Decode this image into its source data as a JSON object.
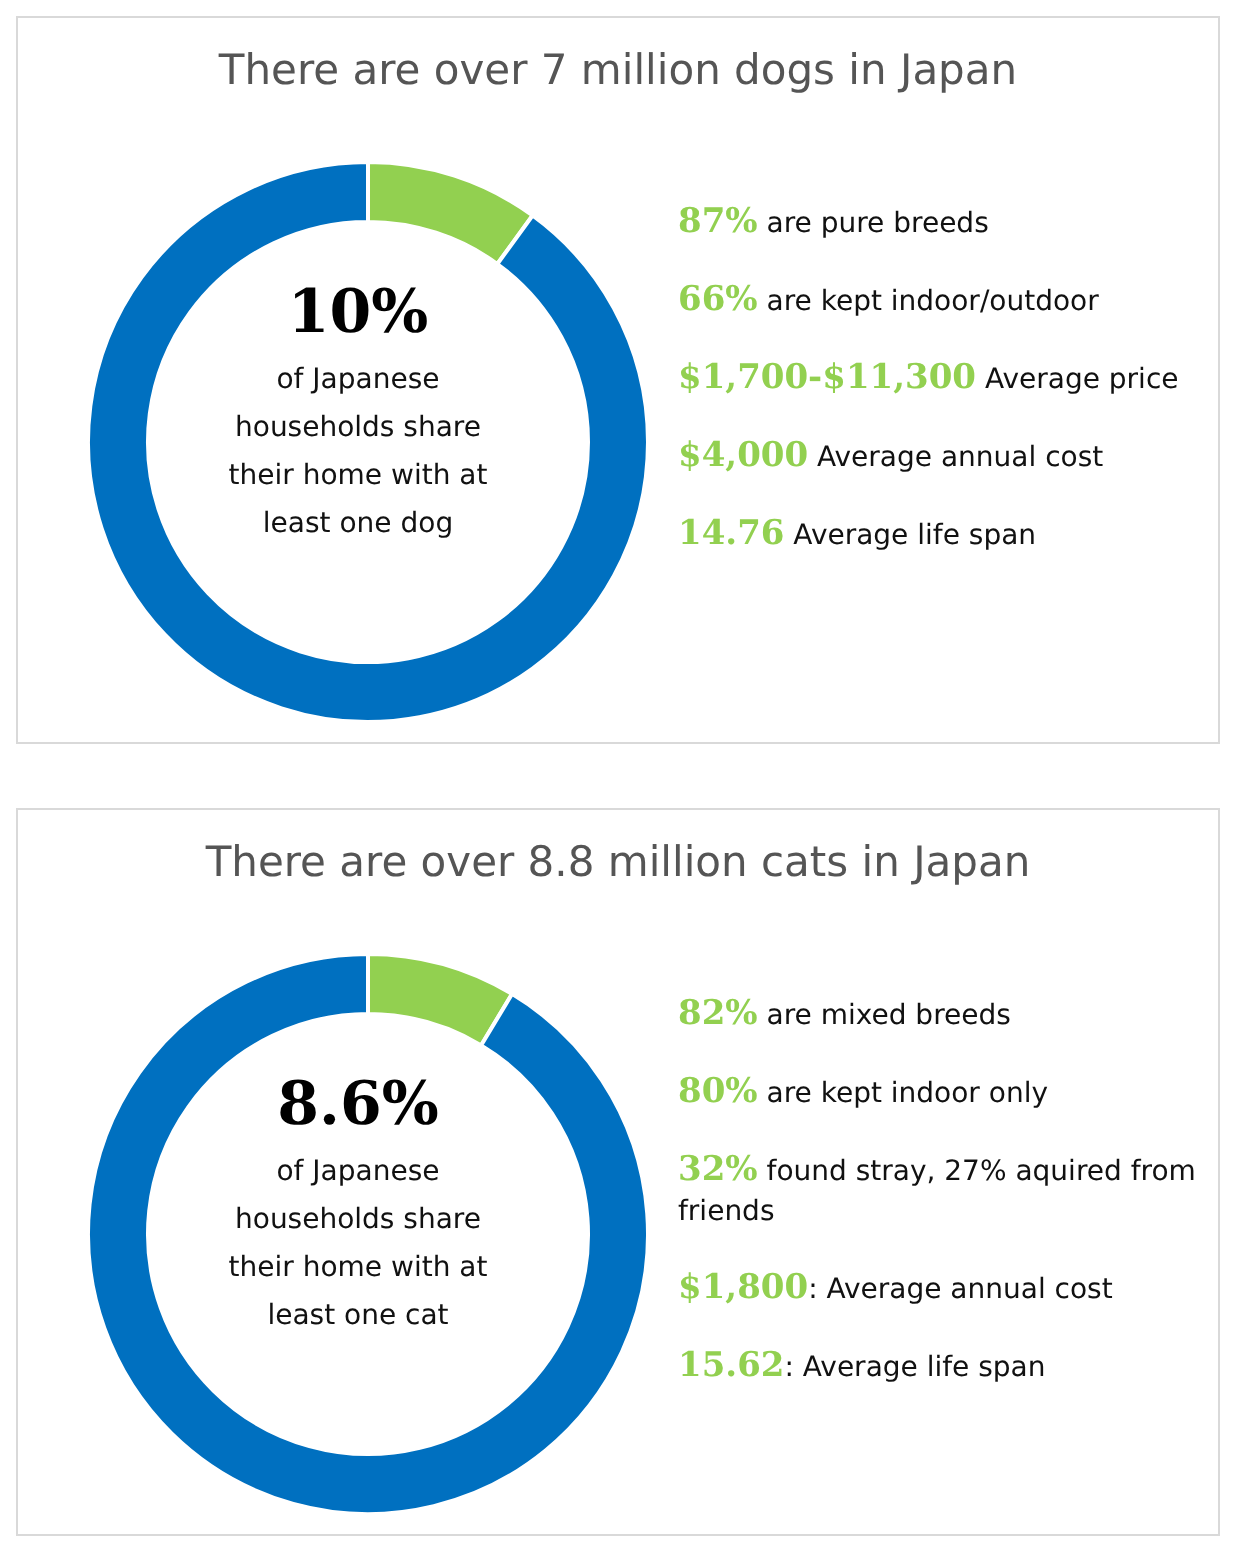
{
  "chart_data": [
    {
      "type": "donut",
      "title": "There are over 7 million dogs in Japan",
      "categories": [
        null,
        null
      ],
      "values": [
        10,
        90
      ],
      "colors": [
        "#92d050",
        "#0070c0"
      ],
      "legend": false,
      "annotations": [
        "10%",
        "of Japanese households share their home with at least one dog",
        "87% are pure breeds",
        "66% are kept indoor/outdoor",
        "$1,700-$11,300 Average price",
        "$4,000 Average annual cost",
        "14.76 Average life span"
      ]
    },
    {
      "type": "donut",
      "title": "There are over 8.8 million cats in Japan",
      "categories": [
        null,
        null
      ],
      "values": [
        8.6,
        91.4
      ],
      "colors": [
        "#92d050",
        "#0070c0"
      ],
      "legend": false,
      "annotations": [
        "8.6%",
        "of Japanese households share their home with at least one cat",
        "82% are mixed breeds",
        "80% are kept indoor only",
        "32% found stray, 27% aquired from friends",
        "$1,800: Average annual cost",
        "15.62: Average life span"
      ]
    }
  ]
}
